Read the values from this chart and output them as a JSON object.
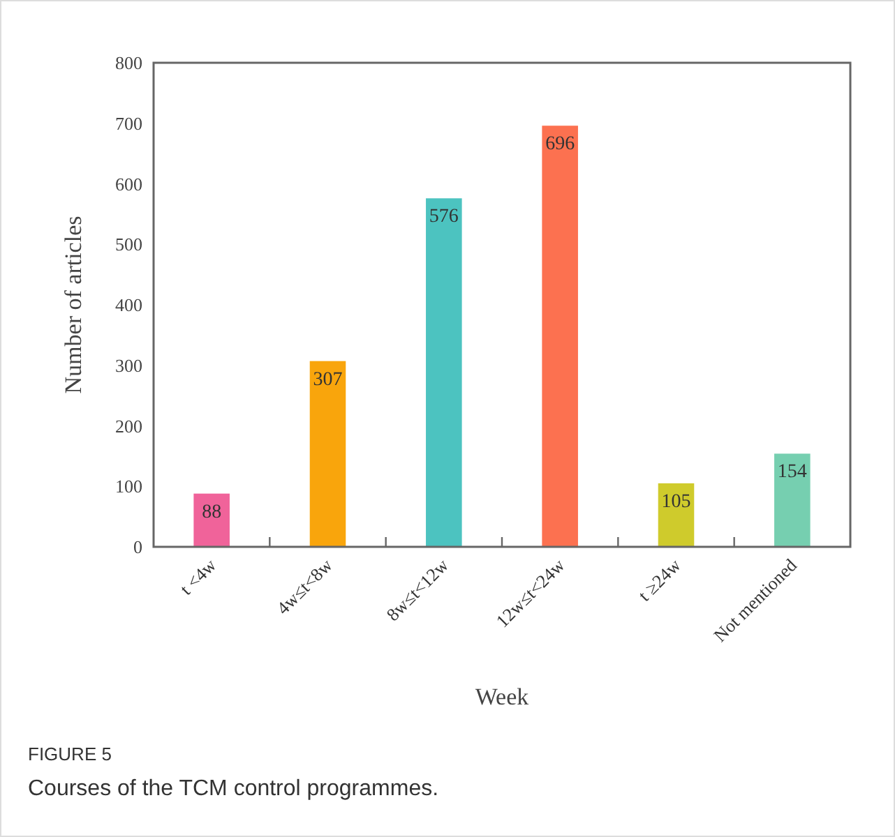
{
  "chart_data": {
    "type": "bar",
    "xlabel": "Week",
    "ylabel": "Number of articles",
    "categories": [
      "t <4w",
      "4w≤t<8w",
      "8w≤t<12w",
      "12w≤t<24w",
      "t ≥24w",
      "Not mentioned"
    ],
    "values": [
      88,
      307,
      576,
      696,
      105,
      154
    ],
    "colors": [
      "#f0639a",
      "#f9a50c",
      "#4cc3c0",
      "#fc7150",
      "#cfcb2c",
      "#76cfb0"
    ],
    "ylim": [
      0,
      800
    ],
    "yticks": [
      0,
      100,
      200,
      300,
      400,
      500,
      600,
      700,
      800
    ],
    "data_labels": true,
    "annotations": [
      "FIGURE 5",
      "Courses of the TCM control programmes."
    ]
  }
}
